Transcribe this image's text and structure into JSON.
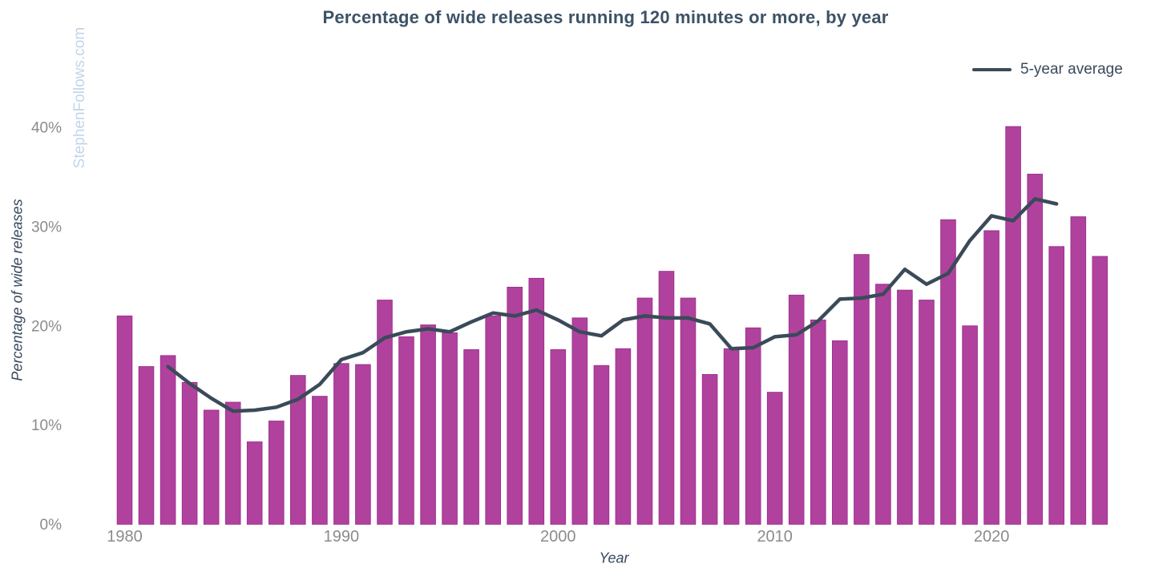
{
  "watermark": {
    "text": "StephenFollows.com"
  },
  "colors": {
    "bar": "#b0429e",
    "bar_border": "#9e3190",
    "line": "#3a4a59",
    "title": "#3d5266",
    "tick": "#8b8b8b",
    "axis_label": "#38495c",
    "watermark": "#c2d6e8"
  },
  "chart_data": {
    "type": "bar+line",
    "title": "Percentage of wide releases running 120 minutes or more, by year",
    "xlabel": "Year",
    "ylabel": "Percentage of wide releases",
    "grid": false,
    "legend_position": "top-right",
    "ylim": [
      0,
      47
    ],
    "xlim": [
      1979,
      2026
    ],
    "x": [
      1980,
      1981,
      1982,
      1983,
      1984,
      1985,
      1986,
      1987,
      1988,
      1989,
      1990,
      1991,
      1992,
      1993,
      1994,
      1995,
      1996,
      1997,
      1998,
      1999,
      2000,
      2001,
      2002,
      2003,
      2004,
      2005,
      2006,
      2007,
      2008,
      2009,
      2010,
      2011,
      2012,
      2013,
      2014,
      2015,
      2016,
      2017,
      2018,
      2019,
      2020,
      2021,
      2022,
      2023,
      2024,
      2025
    ],
    "series": [
      {
        "name": "Percentage of wide releases",
        "type": "bar",
        "values": [
          21.0,
          15.9,
          17.0,
          14.3,
          11.5,
          12.3,
          8.3,
          10.4,
          15.0,
          12.9,
          16.2,
          16.1,
          22.6,
          18.9,
          20.1,
          19.3,
          17.6,
          21.0,
          23.9,
          24.8,
          17.6,
          20.8,
          16.0,
          17.7,
          22.8,
          25.5,
          22.8,
          15.1,
          17.7,
          19.8,
          13.3,
          23.1,
          20.6,
          18.5,
          27.2,
          24.2,
          23.6,
          22.6,
          30.7,
          20.0,
          29.6,
          40.1,
          35.3,
          28.0,
          31.0,
          27.0
        ]
      },
      {
        "name": "5-year average",
        "type": "line",
        "x": [
          1982,
          1983,
          1984,
          1985,
          1986,
          1987,
          1988,
          1989,
          1990,
          1991,
          1992,
          1993,
          1994,
          1995,
          1996,
          1997,
          1998,
          1999,
          2000,
          2001,
          2002,
          2003,
          2004,
          2005,
          2006,
          2007,
          2008,
          2009,
          2010,
          2011,
          2012,
          2013,
          2014,
          2015,
          2016,
          2017,
          2018,
          2019,
          2020,
          2021,
          2022,
          2023
        ],
        "values": [
          15.9,
          14.2,
          12.7,
          11.4,
          11.5,
          11.8,
          12.6,
          14.1,
          16.6,
          17.3,
          18.8,
          19.4,
          19.7,
          19.4,
          20.4,
          21.3,
          21.0,
          21.6,
          20.6,
          19.4,
          19.0,
          20.6,
          21.0,
          20.8,
          20.8,
          20.2,
          17.7,
          17.8,
          18.9,
          19.1,
          20.5,
          22.7,
          22.8,
          23.2,
          25.7,
          24.2,
          25.3,
          28.6,
          31.1,
          30.6,
          32.8,
          32.3
        ]
      }
    ],
    "y_ticks": [
      {
        "value": 0,
        "label": "0%"
      },
      {
        "value": 10,
        "label": "10%"
      },
      {
        "value": 20,
        "label": "20%"
      },
      {
        "value": 30,
        "label": "30%"
      },
      {
        "value": 40,
        "label": "40%"
      }
    ],
    "x_ticks": [
      {
        "value": 1980,
        "label": "1980"
      },
      {
        "value": 1990,
        "label": "1990"
      },
      {
        "value": 2000,
        "label": "2000"
      },
      {
        "value": 2010,
        "label": "2010"
      },
      {
        "value": 2020,
        "label": "2020"
      }
    ]
  }
}
